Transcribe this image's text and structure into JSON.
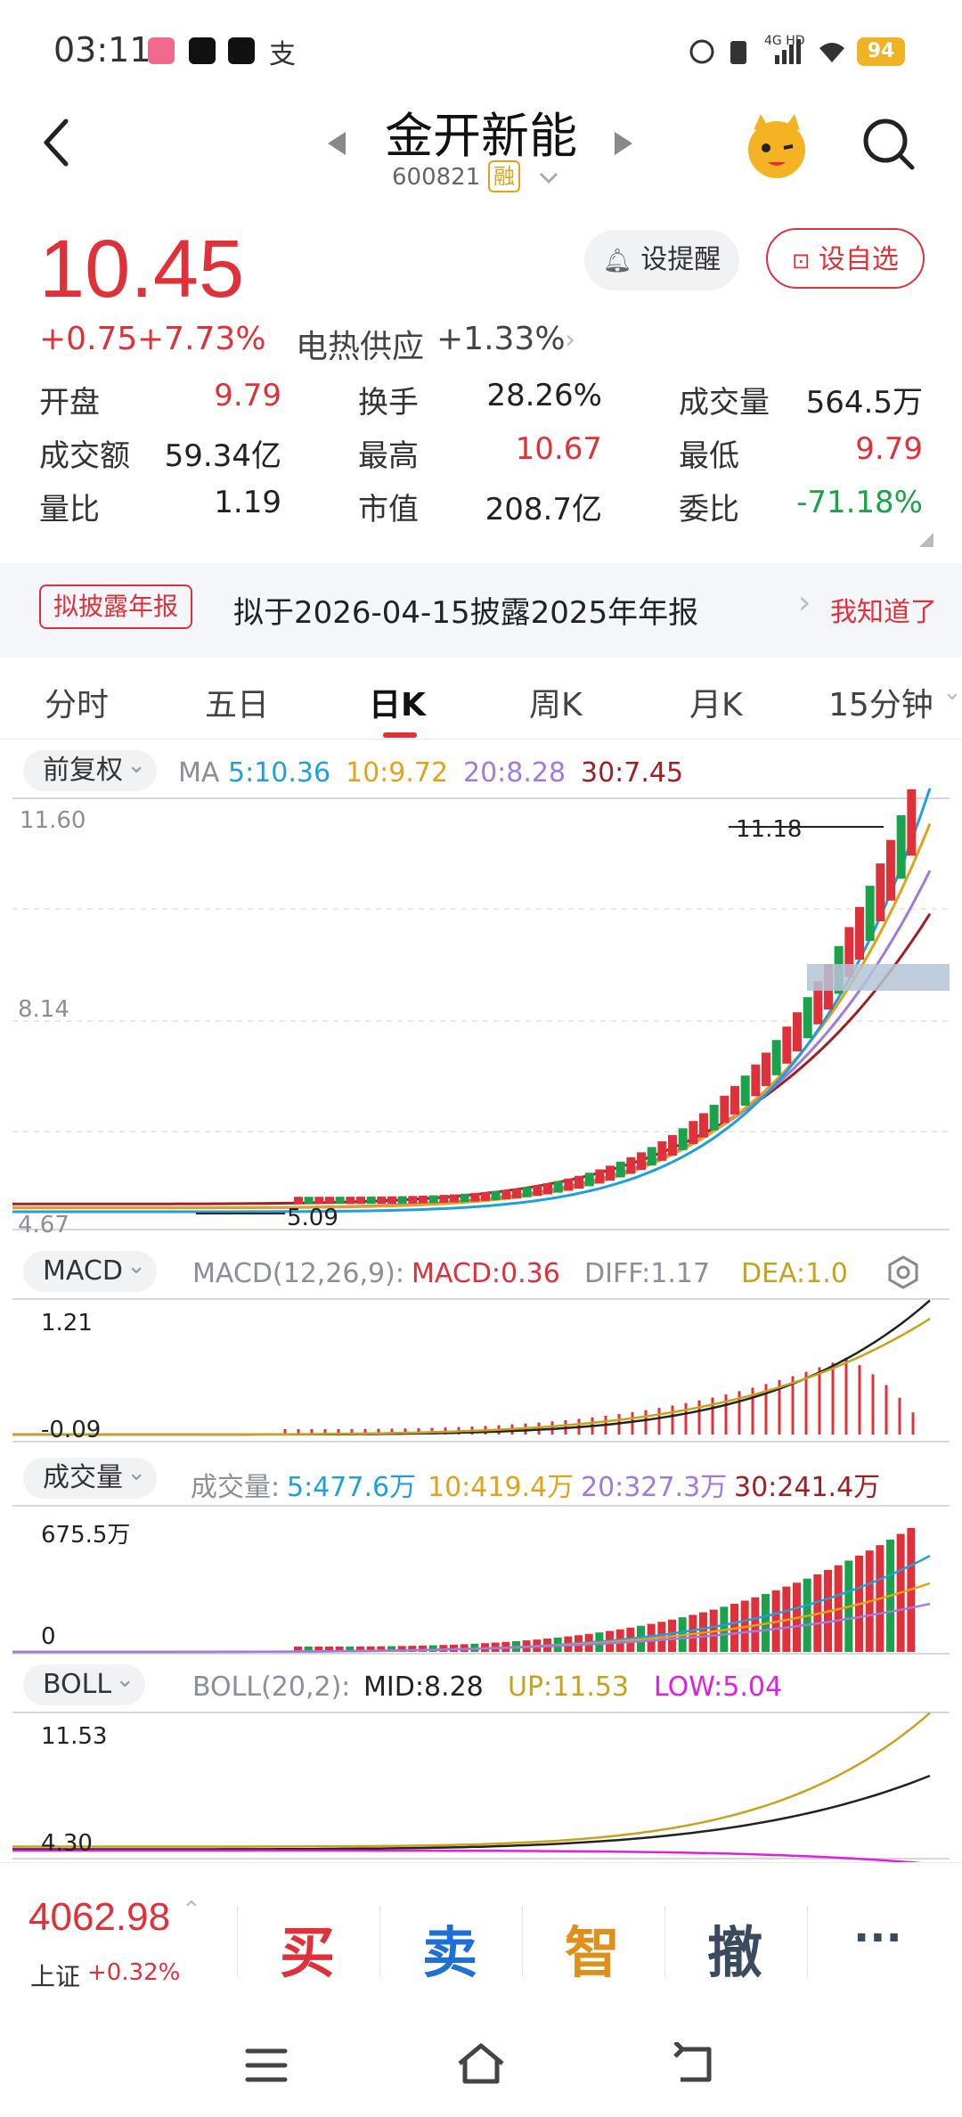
{
  "status_bar": {
    "time": "03:11",
    "network": "4G HD",
    "battery": "94"
  },
  "header": {
    "stock_name": "金开新能",
    "stock_code": "600821",
    "margin_badge": "融"
  },
  "quote": {
    "price": "10.45",
    "change": "+0.75",
    "change_pct": "+7.73%",
    "sector_name": "电热供应",
    "sector_change": "+1.33%",
    "remind_label": "设提醒",
    "favorite_label": "设自选"
  },
  "stats": [
    {
      "label": "开盘",
      "value": "9.79",
      "color": "#e0313b"
    },
    {
      "label": "换手",
      "value": "28.26%",
      "color": "#222222"
    },
    {
      "label": "成交量",
      "value": "564.5万",
      "color": "#222222"
    },
    {
      "label": "成交额",
      "value": "59.34亿",
      "color": "#222222"
    },
    {
      "label": "最高",
      "value": "10.67",
      "color": "#e0313b"
    },
    {
      "label": "最低",
      "value": "9.79",
      "color": "#e0313b"
    },
    {
      "label": "量比",
      "value": "1.19",
      "color": "#222222"
    },
    {
      "label": "市值",
      "value": "208.7亿",
      "color": "#222222"
    },
    {
      "label": "委比",
      "value": "-71.18%",
      "color": "#1aa34a"
    }
  ],
  "notice": {
    "tag": "拟披露年报",
    "text": "拟于2026-04-15披露2025年年报",
    "ack": "我知道了"
  },
  "tabs": [
    "分时",
    "五日",
    "日K",
    "周K",
    "月K",
    "15分钟"
  ],
  "active_tab": "日K",
  "kline": {
    "adjust_label": "前复权",
    "ma_label": "MA",
    "ma5": "5:10.36",
    "ma10": "10:9.72",
    "ma20": "20:8.28",
    "ma30": "30:7.45",
    "y_top": "11.60",
    "y_mid": "8.14",
    "y_bottom": "4.67",
    "high_mark": "11.18",
    "low_mark": "5.09"
  },
  "macd": {
    "selector": "MACD",
    "params": "MACD(12,26,9):",
    "macd": "MACD:0.36",
    "diff": "DIFF:1.17",
    "dea": "DEA:1.0",
    "y_top": "1.21",
    "y_bottom": "-0.09"
  },
  "volume": {
    "selector": "成交量",
    "label": "成交量:",
    "v5": "5:477.6万",
    "v10": "10:419.4万",
    "v20": "20:327.3万",
    "v30": "30:241.4万",
    "y_top": "675.5万",
    "y_bottom": "0"
  },
  "boll": {
    "selector": "BOLL",
    "params": "BOLL(20,2):",
    "mid": "MID:8.28",
    "up": "UP:11.53",
    "low": "LOW:5.04",
    "y_top": "11.53",
    "y_bottom": "4.30"
  },
  "bottom": {
    "index_value": "4062.98",
    "index_name": "上证",
    "index_change": "+0.32%",
    "buy": "买",
    "sell": "卖",
    "smart": "智",
    "cancel": "撤",
    "more": "···"
  },
  "colors": {
    "up": "#e0313b",
    "down": "#1aa34a",
    "ma5": "#1e9fe0",
    "ma10": "#e0a31a",
    "ma20": "#a07ae0",
    "ma30": "#a01e24",
    "boll_low": "#e01ee0"
  }
}
